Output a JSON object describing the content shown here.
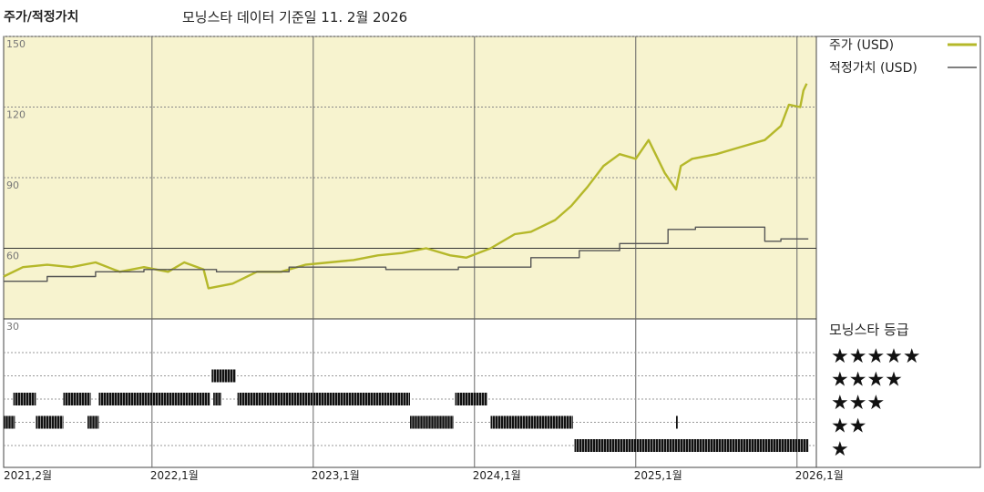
{
  "header": {
    "left_title": "주가/적정가치",
    "center_title": "모닝스타 데이터 기준일 11. 2월 2026"
  },
  "legend": {
    "price_label": "주가 (USD)",
    "fair_label": "적정가치 (USD)",
    "price_color": "#b5b82a",
    "fair_color": "#555555"
  },
  "rating_title": "모닝스타 등급",
  "rating_levels": [
    "★★★★★",
    "★★★★",
    "★★★",
    "★★",
    "★"
  ],
  "colors": {
    "plot_bg": "#f7f3cf",
    "grid": "#888888"
  },
  "chart_data": {
    "type": "line",
    "title": "",
    "ylim": [
      30,
      150
    ],
    "yticks": [
      150,
      120,
      90,
      60,
      30
    ],
    "x_range": [
      "2021-02",
      "2026-02"
    ],
    "xticks": [
      "2021,2월",
      "2022,1월",
      "2023,1월",
      "2024,1월",
      "2025,1월",
      "2026,1월"
    ],
    "xtick_years": [
      2021.08,
      2022.0,
      2023.0,
      2024.0,
      2025.0,
      2026.0
    ],
    "series": [
      {
        "name": "주가 (USD)",
        "x": [
          2021.08,
          2021.2,
          2021.35,
          2021.5,
          2021.65,
          2021.8,
          2021.95,
          2022.1,
          2022.2,
          2022.32,
          2022.35,
          2022.5,
          2022.65,
          2022.8,
          2022.95,
          2023.1,
          2023.25,
          2023.4,
          2023.55,
          2023.7,
          2023.85,
          2023.95,
          2024.1,
          2024.25,
          2024.35,
          2024.5,
          2024.6,
          2024.7,
          2024.8,
          2024.9,
          2025.0,
          2025.08,
          2025.18,
          2025.25,
          2025.28,
          2025.35,
          2025.5,
          2025.65,
          2025.8,
          2025.9,
          2025.95,
          2026.02,
          2026.04,
          2026.06
        ],
        "values": [
          48,
          52,
          53,
          52,
          54,
          50,
          52,
          50,
          54,
          51,
          43,
          45,
          50,
          50,
          53,
          54,
          55,
          57,
          58,
          60,
          57,
          56,
          60,
          66,
          67,
          72,
          78,
          86,
          95,
          100,
          98,
          106,
          92,
          85,
          95,
          98,
          100,
          103,
          106,
          112,
          121,
          120,
          127,
          130
        ]
      },
      {
        "name": "적정가치 (USD)",
        "x": [
          2021.08,
          2021.35,
          2021.35,
          2021.65,
          2021.65,
          2021.95,
          2021.95,
          2022.4,
          2022.4,
          2022.85,
          2022.85,
          2023.45,
          2023.45,
          2023.9,
          2023.9,
          2024.35,
          2024.35,
          2024.65,
          2024.65,
          2024.9,
          2024.9,
          2025.2,
          2025.2,
          2025.37,
          2025.37,
          2025.8,
          2025.8,
          2025.9,
          2025.9,
          2026.07
        ],
        "values": [
          46,
          46,
          48,
          48,
          50,
          50,
          51,
          51,
          50,
          50,
          52,
          52,
          51,
          51,
          52,
          52,
          56,
          56,
          59,
          59,
          62,
          62,
          68,
          68,
          69,
          69,
          63,
          63,
          64,
          64
        ]
      }
    ],
    "rating_history": [
      {
        "stars": 4,
        "from": 2022.37,
        "to": 2022.52
      },
      {
        "stars": 3,
        "from": 2021.14,
        "to": 2021.28
      },
      {
        "stars": 3,
        "from": 2021.45,
        "to": 2021.62
      },
      {
        "stars": 3,
        "from": 2021.67,
        "to": 2022.36
      },
      {
        "stars": 3,
        "from": 2022.38,
        "to": 2022.43
      },
      {
        "stars": 3,
        "from": 2022.53,
        "to": 2023.6
      },
      {
        "stars": 3,
        "from": 2023.88,
        "to": 2024.08
      },
      {
        "stars": 2,
        "from": 2021.08,
        "to": 2021.15
      },
      {
        "stars": 2,
        "from": 2021.28,
        "to": 2021.45
      },
      {
        "stars": 2,
        "from": 2021.6,
        "to": 2021.67
      },
      {
        "stars": 2,
        "from": 2023.6,
        "to": 2023.87
      },
      {
        "stars": 2,
        "from": 2024.1,
        "to": 2024.61
      },
      {
        "stars": 2,
        "from": 2025.25,
        "to": 2025.26
      },
      {
        "stars": 1,
        "from": 2024.62,
        "to": 2026.07
      }
    ]
  }
}
